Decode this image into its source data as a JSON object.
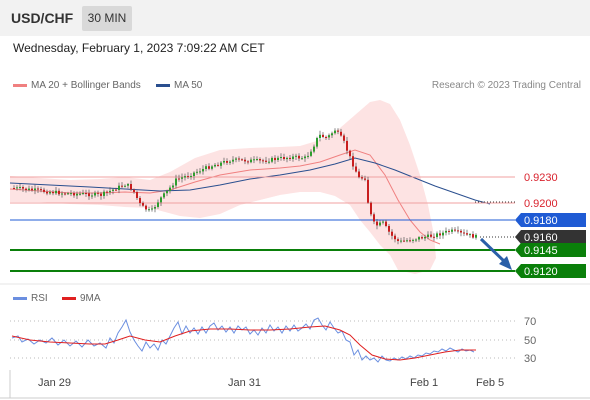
{
  "header": {
    "symbol": "USD/CHF",
    "timeframe": "30 MIN"
  },
  "datetime": "Wednesday, February 1, 2023 7:09:22 AM CET",
  "legend": {
    "bollinger": {
      "label": "MA 20 + Bollinger Bands",
      "color": "#f08080"
    },
    "ma50": {
      "label": "MA 50",
      "color": "#2a4f8f"
    }
  },
  "copyright": "Research © 2023 Trading Central",
  "levels": [
    {
      "value": "0.9230",
      "kind": "resistance-text",
      "color": "#d9232e"
    },
    {
      "value": "0.9200",
      "kind": "resistance-text",
      "color": "#d9232e"
    },
    {
      "value": "0.9180",
      "kind": "pivot",
      "color": "#1f5bd4"
    },
    {
      "value": "0.9160",
      "kind": "last",
      "color": "#333333"
    },
    {
      "value": "0.9145",
      "kind": "support",
      "color": "#0a7f0a"
    },
    {
      "value": "0.9120",
      "kind": "support",
      "color": "#0a7f0a"
    }
  ],
  "rsi": {
    "legend_rsi": "RSI",
    "legend_ma": "9MA",
    "rsi_color": "#6b8fe0",
    "ma_color": "#e02020",
    "levels": [
      "70",
      "50",
      "30"
    ]
  },
  "xaxis": {
    "labels": [
      "Jan 29",
      "Jan 31",
      "Feb 1",
      "Feb 5"
    ]
  }
}
